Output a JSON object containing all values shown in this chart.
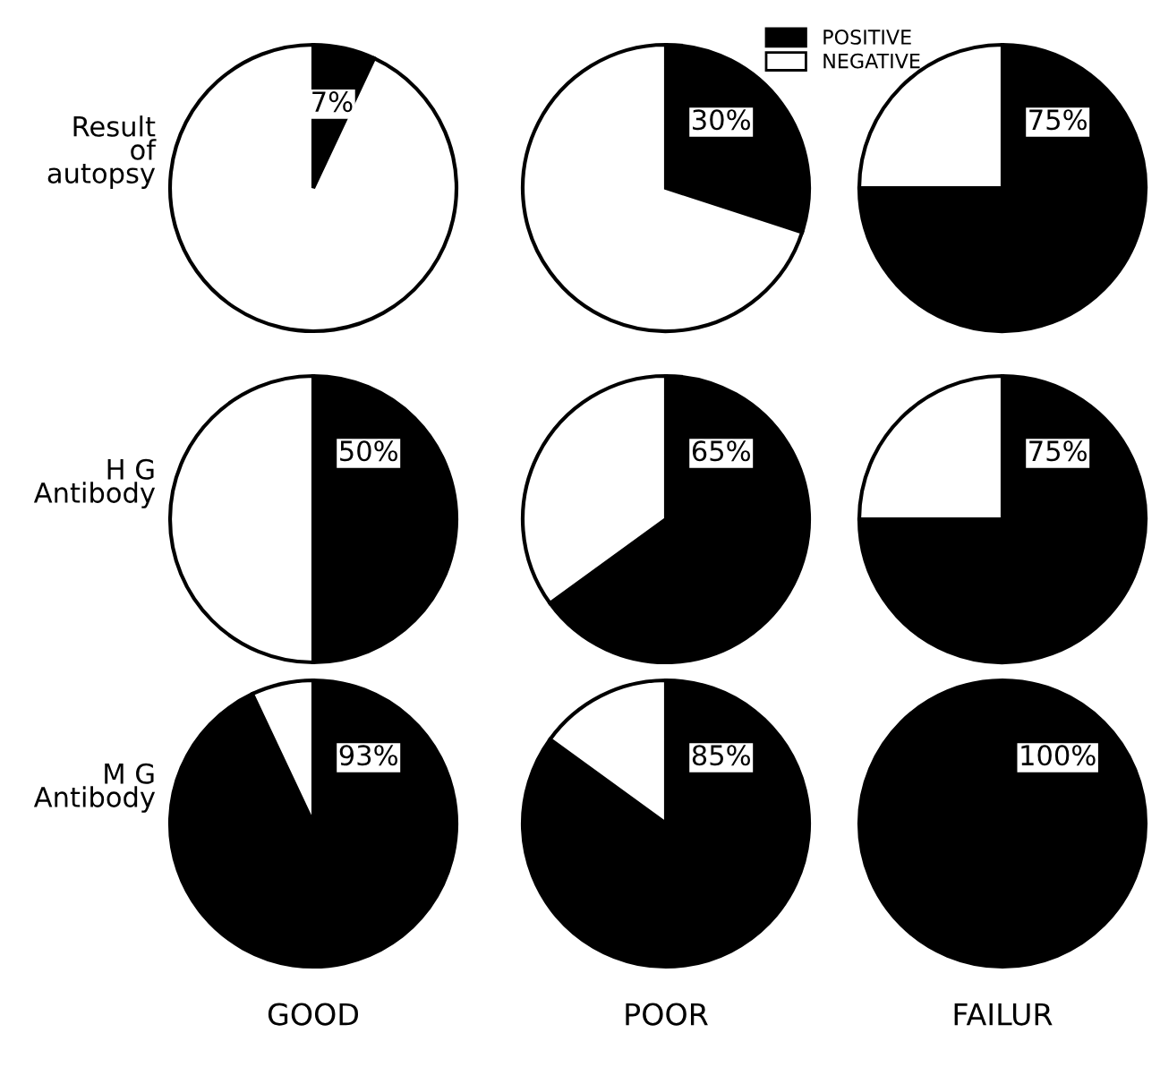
{
  "chart_data": [
    {
      "type": "pie",
      "ylabel": "Result\nof\nautopsy",
      "categories": [
        null,
        null
      ],
      "values": [
        7,
        93
      ],
      "colors": [
        "#000000",
        "#ffffff"
      ],
      "value_labels": [
        "7%",
        null
      ]
    },
    {
      "type": "pie",
      "categories": [
        null,
        null
      ],
      "values": [
        30,
        70
      ],
      "colors": [
        "#000000",
        "#ffffff"
      ],
      "value_labels": [
        "30%",
        null
      ]
    },
    {
      "type": "pie",
      "categories": [
        "POSITIVE",
        "NEGATIVE"
      ],
      "values": [
        75,
        25
      ],
      "colors": [
        "#000000",
        "#ffffff"
      ],
      "value_labels": [
        "75%",
        null
      ],
      "legend": "top left"
    },
    {
      "type": "pie",
      "ylabel": "H G\nAntibody",
      "categories": [
        null,
        null
      ],
      "values": [
        50,
        50
      ],
      "colors": [
        "#000000",
        "#ffffff"
      ],
      "value_labels": [
        "50%",
        null
      ]
    },
    {
      "type": "pie",
      "categories": [
        null,
        null
      ],
      "values": [
        65,
        35
      ],
      "colors": [
        "#000000",
        "#ffffff"
      ],
      "value_labels": [
        "65%",
        null
      ]
    },
    {
      "type": "pie",
      "categories": [
        null,
        null
      ],
      "values": [
        75,
        25
      ],
      "colors": [
        "#000000",
        "#ffffff"
      ],
      "value_labels": [
        "75%",
        null
      ]
    },
    {
      "type": "pie",
      "ylabel": "M G\nAntibody",
      "xlabel": "GOOD",
      "categories": [
        null,
        null
      ],
      "values": [
        93,
        7
      ],
      "colors": [
        "#000000",
        "#ffffff"
      ],
      "value_labels": [
        "93%",
        null
      ]
    },
    {
      "type": "pie",
      "xlabel": "POOR",
      "categories": [
        null,
        null
      ],
      "values": [
        85,
        15
      ],
      "colors": [
        "#000000",
        "#ffffff"
      ],
      "value_labels": [
        "85%",
        null
      ]
    },
    {
      "type": "pie",
      "xlabel": "FAILUR",
      "categories": [
        null,
        null
      ],
      "values": [
        100,
        0
      ],
      "colors": [
        "#000000",
        "#ffffff"
      ],
      "value_labels": [
        "100%",
        null
      ]
    }
  ]
}
